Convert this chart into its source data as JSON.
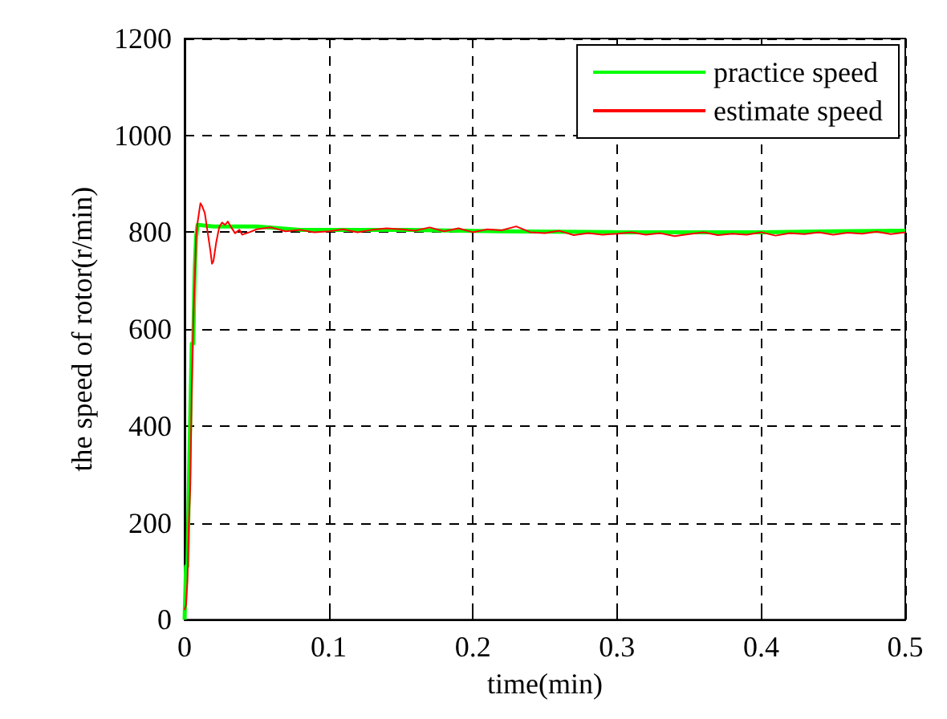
{
  "chart_data": {
    "type": "line",
    "xlabel": "time(min)",
    "ylabel": "the speed of rotor(r/min)",
    "xlim": [
      0,
      0.5
    ],
    "xticks": [
      0,
      0.1,
      0.2,
      0.3,
      0.4,
      0.5
    ],
    "ylim": [
      0,
      1200
    ],
    "yticks": [
      0,
      200,
      400,
      600,
      800,
      1000,
      1200
    ],
    "grid": true,
    "legend": "top right",
    "line_style": "solid",
    "marker": "none",
    "series": [
      {
        "name": "practice speed",
        "color": "#00ff00",
        "x": [
          0,
          0.001,
          0.002,
          0.003,
          0.004,
          0.005,
          0.006,
          0.007,
          0.008,
          0.009,
          0.01,
          0.02,
          0.05,
          0.08,
          0.15,
          0.22,
          0.3,
          0.4,
          0.45,
          0.5
        ],
        "values": [
          0,
          110,
          110,
          280,
          430,
          570,
          570,
          720,
          790,
          815,
          815,
          812,
          812,
          805,
          805,
          802,
          800,
          800,
          802,
          803
        ]
      },
      {
        "name": "estimate speed",
        "color": "#ff0000",
        "x": [
          0,
          0.001,
          0.002,
          0.003,
          0.004,
          0.005,
          0.006,
          0.007,
          0.008,
          0.009,
          0.01,
          0.011,
          0.012,
          0.014,
          0.016,
          0.018,
          0.019,
          0.02,
          0.022,
          0.024,
          0.026,
          0.028,
          0.03,
          0.032,
          0.035,
          0.038,
          0.04,
          0.045,
          0.05,
          0.06,
          0.07,
          0.08,
          0.09,
          0.1,
          0.11,
          0.12,
          0.13,
          0.14,
          0.15,
          0.16,
          0.17,
          0.18,
          0.19,
          0.2,
          0.21,
          0.22,
          0.23,
          0.24,
          0.25,
          0.26,
          0.27,
          0.28,
          0.29,
          0.3,
          0.31,
          0.32,
          0.33,
          0.34,
          0.35,
          0.36,
          0.37,
          0.38,
          0.39,
          0.4,
          0.41,
          0.42,
          0.43,
          0.44,
          0.45,
          0.46,
          0.47,
          0.48,
          0.49,
          0.5
        ],
        "values": [
          20,
          30,
          80,
          200,
          280,
          480,
          610,
          700,
          790,
          820,
          840,
          860,
          855,
          840,
          800,
          760,
          735,
          740,
          780,
          810,
          820,
          815,
          822,
          812,
          798,
          805,
          795,
          800,
          806,
          810,
          802,
          805,
          800,
          802,
          806,
          800,
          805,
          808,
          806,
          803,
          810,
          802,
          808,
          800,
          806,
          804,
          812,
          800,
          798,
          803,
          794,
          798,
          795,
          797,
          800,
          795,
          798,
          792,
          796,
          800,
          794,
          797,
          795,
          800,
          793,
          798,
          796,
          800,
          795,
          799,
          797,
          801,
          796,
          800
        ]
      }
    ]
  }
}
